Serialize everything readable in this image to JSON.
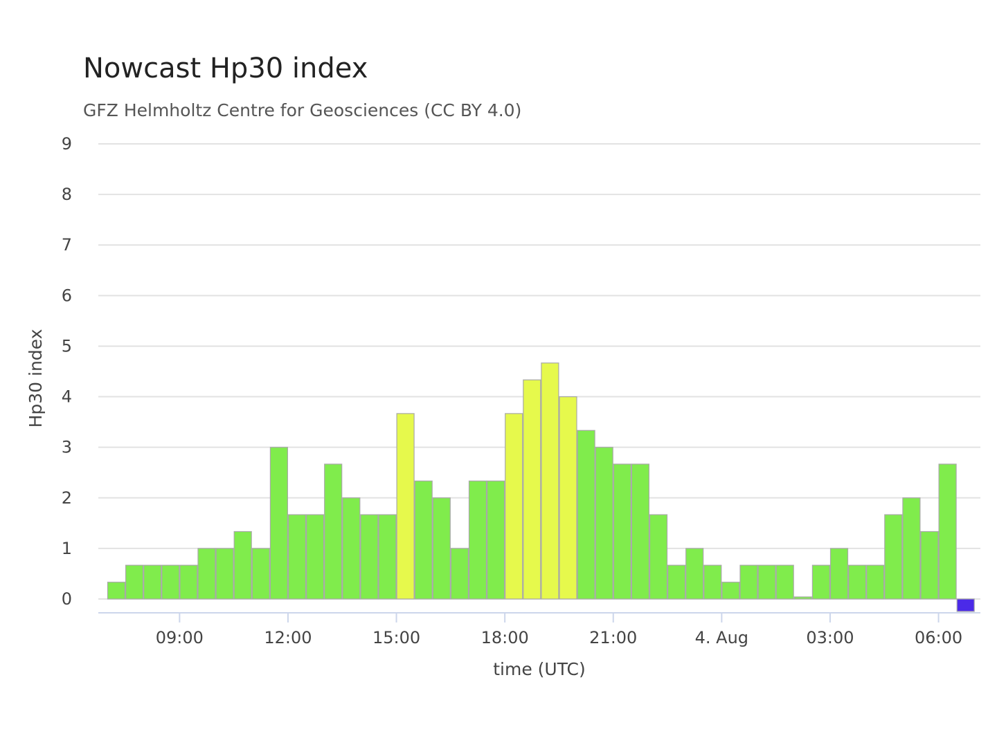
{
  "chart_data": {
    "type": "bar",
    "title": "Nowcast Hp30 index",
    "subtitle": "GFZ Helmholtz Centre for Geosciences (CC BY 4.0)",
    "ylabel": "Hp30 index",
    "xlabel": "time (UTC)",
    "ylim": [
      0,
      9
    ],
    "yticks": [
      "0",
      "1",
      "2",
      "3",
      "4",
      "5",
      "6",
      "7",
      "8",
      "9"
    ],
    "xticks": [
      {
        "label": "09:00",
        "index": 4
      },
      {
        "label": "12:00",
        "index": 10
      },
      {
        "label": "15:00",
        "index": 16
      },
      {
        "label": "18:00",
        "index": 22
      },
      {
        "label": "21:00",
        "index": 28
      },
      {
        "label": "4. Aug",
        "index": 34
      },
      {
        "label": "03:00",
        "index": 40
      },
      {
        "label": "06:00",
        "index": 46
      }
    ],
    "first_bar_time": "07:00",
    "interval_minutes": 30,
    "grid": true,
    "legend": "none",
    "values": [
      0.333,
      0.667,
      0.667,
      0.667,
      0.667,
      1.0,
      1.0,
      1.333,
      1.0,
      3.0,
      1.667,
      1.667,
      2.667,
      2.0,
      1.667,
      1.667,
      3.667,
      2.333,
      2.0,
      1.0,
      2.333,
      2.333,
      3.667,
      4.333,
      4.667,
      4.0,
      3.333,
      3.0,
      2.667,
      2.667,
      1.667,
      0.667,
      1.0,
      0.667,
      0.333,
      0.667,
      0.667,
      0.667,
      0.0,
      0.667,
      1.0,
      0.667,
      0.667,
      1.667,
      2.0,
      1.333,
      2.667,
      0.0
    ],
    "colors": {
      "low": "#80ec4c",
      "moderate": "#e6f94c",
      "nowcast": "#4b2ae8",
      "grid": "#e2e2e2",
      "axis": "#ccd6eb"
    }
  }
}
